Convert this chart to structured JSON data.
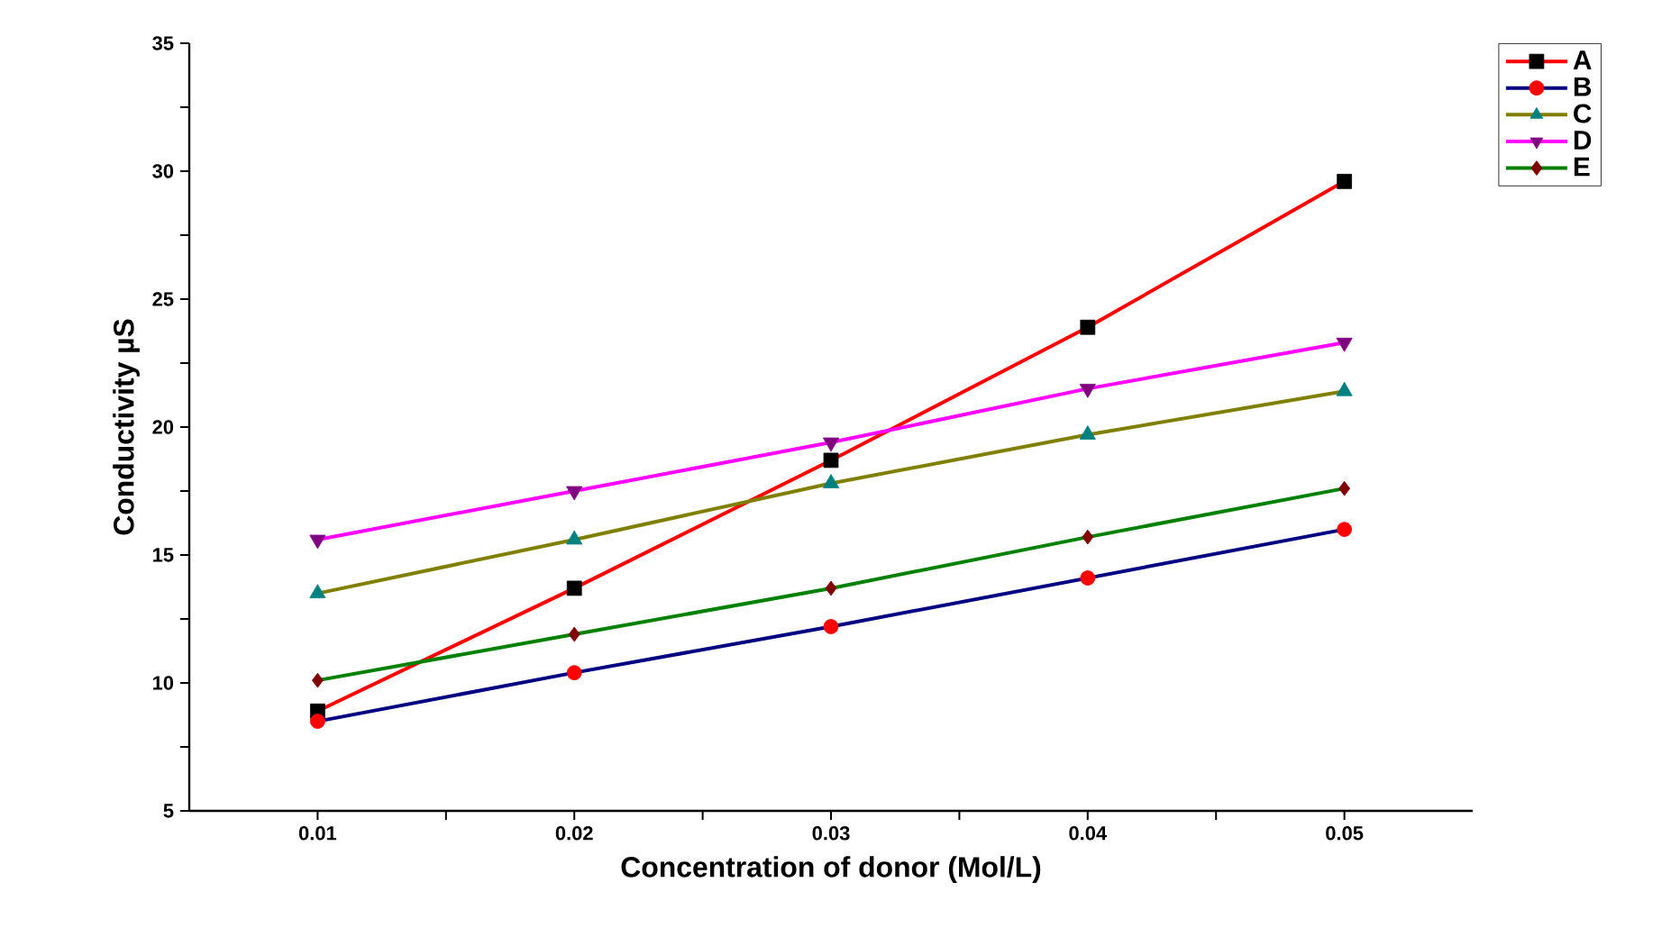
{
  "chart_data": {
    "type": "line",
    "xlabel": "Concentration of donor (Mol/L)",
    "ylabel": "Conductivity µS",
    "x": [
      0.01,
      0.02,
      0.03,
      0.04,
      0.05
    ],
    "xlim": [
      0.005,
      0.055
    ],
    "xticks": [
      0.01,
      {
        "value": 0.015,
        "label": null
      },
      0.02,
      {
        "value": 0.025,
        "label": null
      },
      0.03,
      {
        "value": 0.035,
        "label": null
      },
      0.04,
      {
        "value": 0.045,
        "label": null
      },
      0.05
    ],
    "ylim": [
      5,
      35
    ],
    "yticks": [
      5,
      {
        "value": 7.5,
        "label": null
      },
      10,
      {
        "value": 12.5,
        "label": null
      },
      15,
      {
        "value": 17.5,
        "label": null
      },
      20,
      {
        "value": 22.5,
        "label": null
      },
      25,
      {
        "value": 27.5,
        "label": null
      },
      30,
      {
        "value": 32.5,
        "label": null
      },
      35
    ],
    "legend": "top right",
    "grid": false,
    "series": [
      {
        "name": "A",
        "color": "#ff0000",
        "marker": "square",
        "colors": [
          "#000000",
          "#000000",
          "#000000",
          "#000000",
          "#000000"
        ],
        "values": [
          8.9,
          13.7,
          18.7,
          23.9,
          29.6
        ]
      },
      {
        "name": "B",
        "color": "#000080",
        "marker": "circle",
        "colors": [
          "#ff0000",
          "#ff0000",
          "#ff0000",
          "#ff0000",
          "#ff0000"
        ],
        "values": [
          8.5,
          10.4,
          12.2,
          14.1,
          16.0
        ]
      },
      {
        "name": "C",
        "color": "#808000",
        "marker": "triangle",
        "colors": [
          "#008080",
          "#008080",
          "#008080",
          "#008080",
          "#008080"
        ],
        "values": [
          13.5,
          15.6,
          17.8,
          19.7,
          21.4
        ]
      },
      {
        "name": "D",
        "color": "#ff00ff",
        "marker": "triangle",
        "colors": [
          "#800080",
          "#800080",
          "#800080",
          "#800080",
          "#800080"
        ],
        "values": [
          15.6,
          17.5,
          19.4,
          21.5,
          23.3
        ]
      },
      {
        "name": "E",
        "color": "#008000",
        "marker": "diamond",
        "colors": [
          "#800000",
          "#800000",
          "#800000",
          "#800000",
          "#800000"
        ],
        "values": [
          10.1,
          11.9,
          13.7,
          15.7,
          17.6
        ]
      }
    ]
  }
}
